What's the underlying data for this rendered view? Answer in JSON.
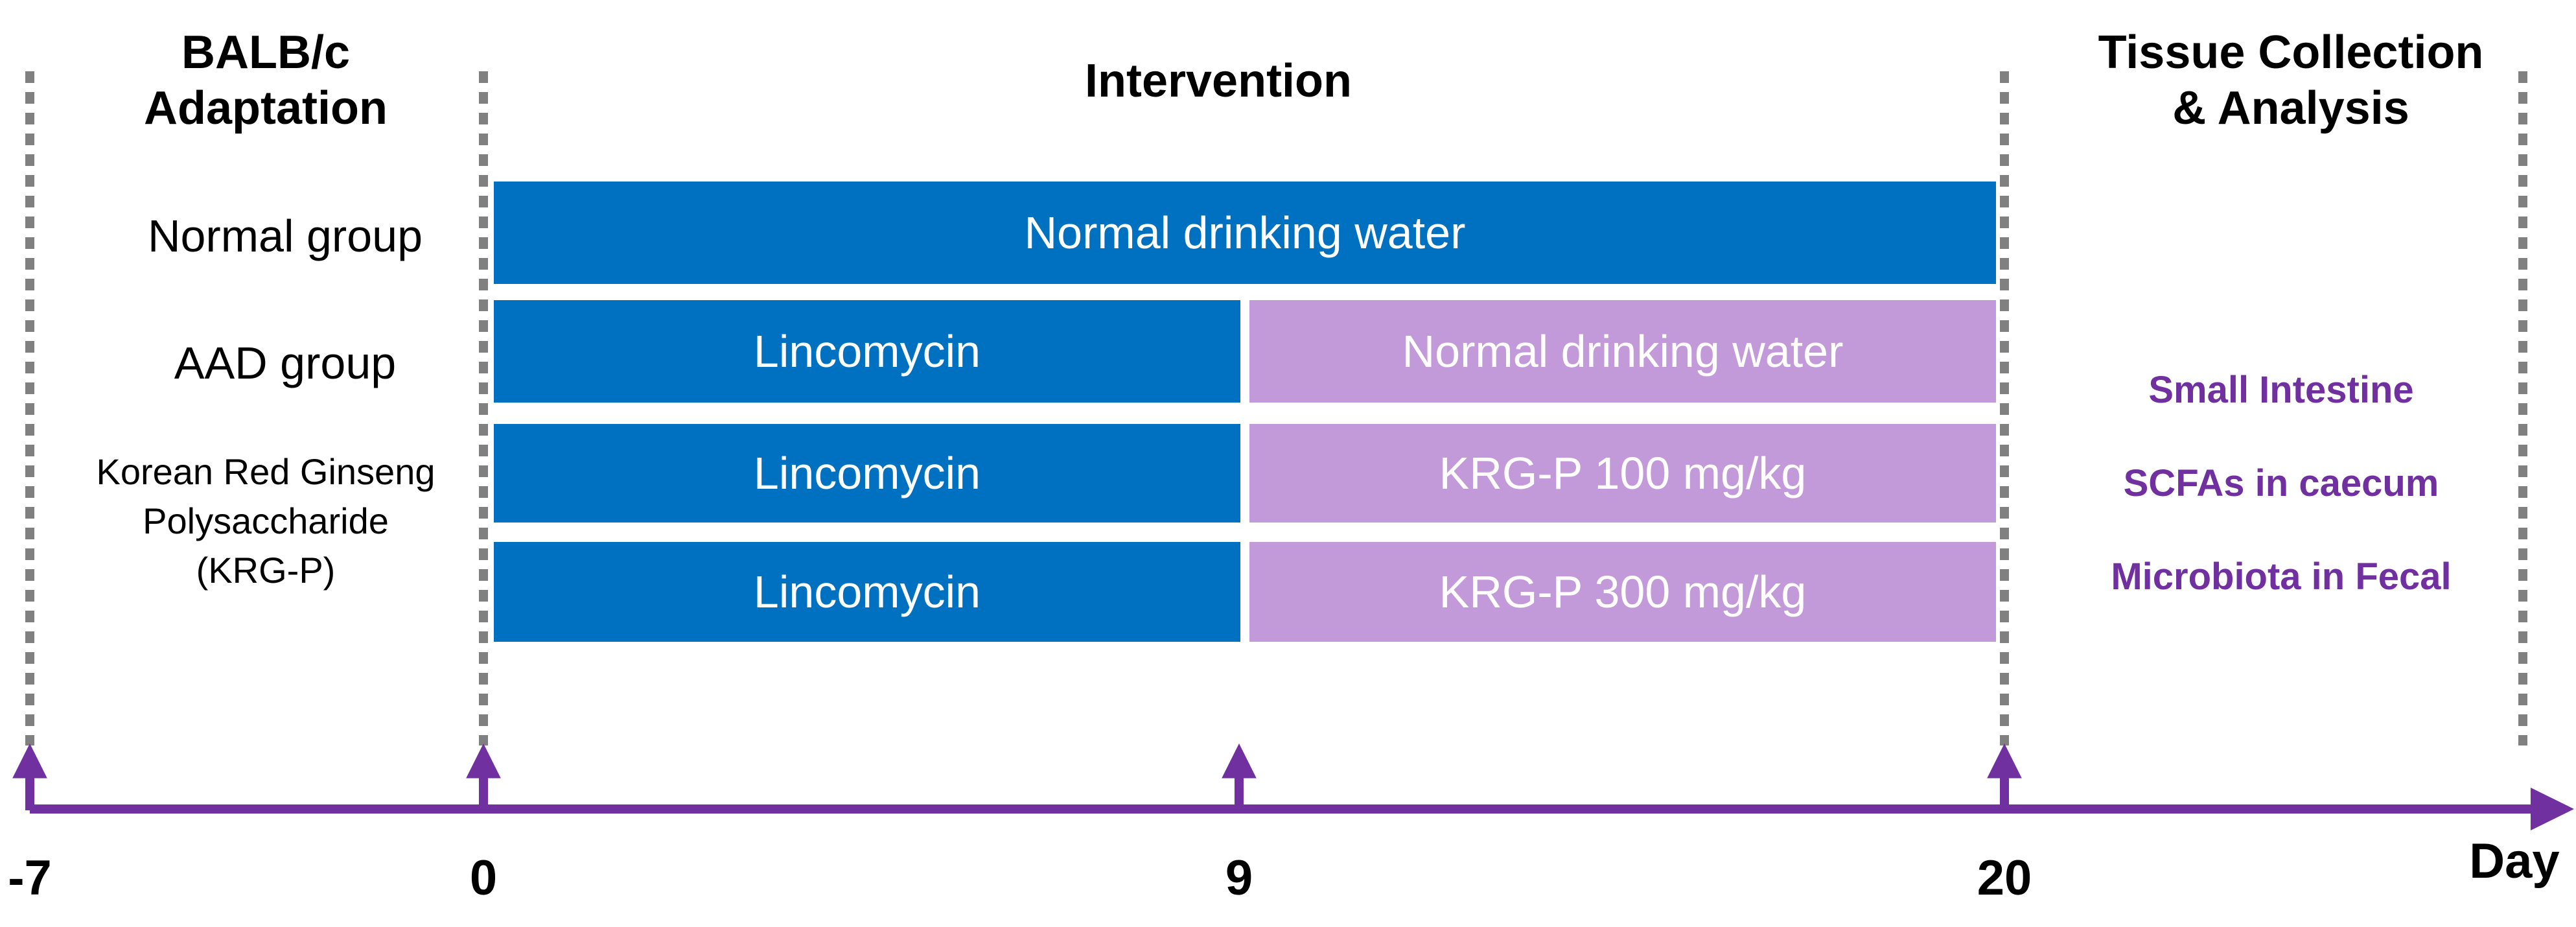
{
  "phases": {
    "adaptation_line1": "BALB/c",
    "adaptation_line2": "Adaptation",
    "intervention": "Intervention",
    "collection_line1": "Tissue Collection",
    "collection_line2": "& Analysis"
  },
  "groups": {
    "normal": "Normal group",
    "aad": "AAD group",
    "krg_line1": "Korean Red Ginseng",
    "krg_line2": "Polysaccharide",
    "krg_line3": "(KRG-P)"
  },
  "bars": {
    "normal_full": "Normal drinking water",
    "aad_first": "Lincomycin",
    "aad_second": "Normal drinking water",
    "krg100_first": "Lincomycin",
    "krg100_second": "KRG-P 100 mg/kg",
    "krg300_first": "Lincomycin",
    "krg300_second": "KRG-P 300 mg/kg"
  },
  "analysis_items": [
    "Small Intestine",
    "SCFAs in caecum",
    "Microbiota in Fecal"
  ],
  "timeline": {
    "days": [
      "-7",
      "0",
      "9",
      "20"
    ],
    "unit_label": "Day"
  },
  "colors": {
    "treatment_blue": "#0070c0",
    "recovery_purple": "#c39ad9",
    "axis_purple": "#7030a0",
    "analysis_text": "#7030a0",
    "divider_gray": "#808080"
  }
}
